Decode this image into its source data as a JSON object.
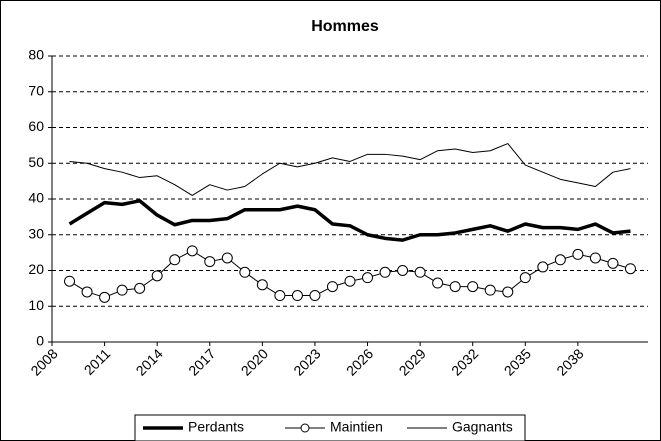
{
  "chart_data": {
    "type": "line",
    "title": "Hommes",
    "x": [
      2009,
      2010,
      2011,
      2012,
      2013,
      2014,
      2015,
      2016,
      2017,
      2018,
      2019,
      2020,
      2021,
      2022,
      2023,
      2024,
      2025,
      2026,
      2027,
      2028,
      2029,
      2030,
      2031,
      2032,
      2033,
      2034,
      2035,
      2036,
      2037,
      2038,
      2039,
      2040,
      2041
    ],
    "series": [
      {
        "name": "Perdants",
        "color": "#000000",
        "width": 3.5,
        "marker": false,
        "values": [
          33,
          36,
          39,
          38.5,
          39.5,
          35.5,
          32.8,
          34,
          34,
          34.5,
          37,
          37,
          37,
          38,
          37,
          33,
          32.5,
          30,
          29,
          28.5,
          30,
          30,
          30.5,
          31.5,
          32.5,
          31,
          33,
          32,
          32,
          31.5,
          33,
          30.5,
          31
        ]
      },
      {
        "name": "Maintien",
        "color": "#000000",
        "width": 1,
        "marker": true,
        "values": [
          17,
          14,
          12.5,
          14.5,
          15,
          18.5,
          23,
          25.5,
          22.5,
          23.5,
          19.5,
          16,
          13,
          13,
          13,
          15.5,
          17,
          18,
          19.5,
          20,
          19.5,
          16.5,
          15.5,
          15.5,
          14.5,
          14,
          18,
          21,
          23,
          24.5,
          23.5,
          22,
          20.5
        ]
      },
      {
        "name": "Gagnants",
        "color": "#000000",
        "width": 1,
        "marker": false,
        "values": [
          50.5,
          50,
          48.5,
          47.5,
          46,
          46.5,
          44,
          41,
          44,
          42.5,
          43.5,
          47,
          50,
          49,
          50,
          51.5,
          50.5,
          52.5,
          52.5,
          52,
          51,
          53.5,
          54,
          53,
          53.5,
          55.5,
          49.5,
          47.5,
          45.5,
          44.5,
          43.5,
          47.5,
          48.5
        ]
      }
    ],
    "xlim": [
      2008,
      2042
    ],
    "xticks": [
      2008,
      2011,
      2014,
      2017,
      2020,
      2023,
      2026,
      2029,
      2032,
      2035,
      2038
    ],
    "ylim": [
      0,
      80
    ],
    "yticks": [
      0,
      10,
      20,
      30,
      40,
      50,
      60,
      70,
      80
    ],
    "grid": true,
    "legend": "bottom"
  }
}
